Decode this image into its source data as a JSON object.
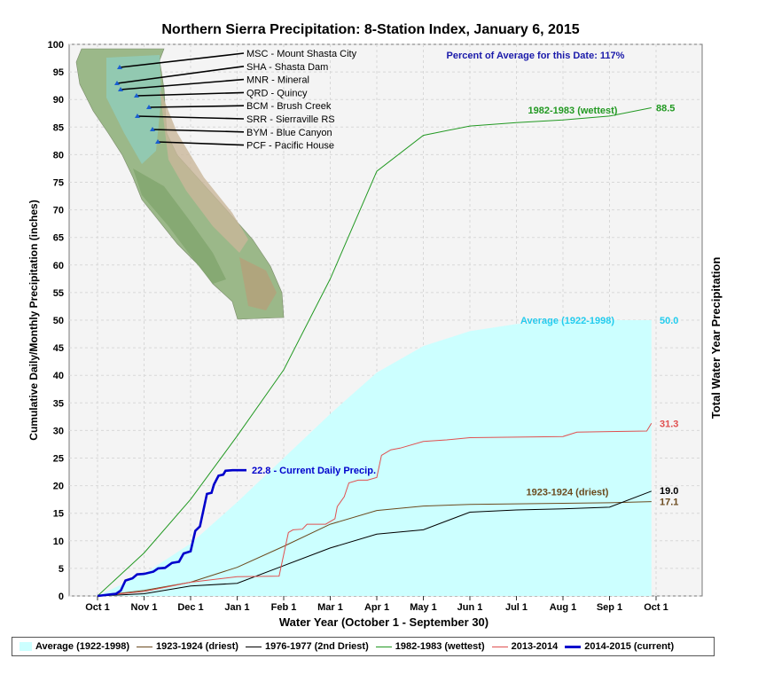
{
  "chart_data": {
    "type": "line",
    "title": "Northern Sierra Precipitation: 8-Station Index, January 6, 2015",
    "xlabel": "Water Year (October 1 - September 30)",
    "ylabel": "Cumulative Daily/Monthly Precipitation (inches)",
    "y2label": "Total Water Year Precipitation",
    "ylim": [
      0,
      100
    ],
    "yticks": [
      0,
      5,
      10,
      15,
      20,
      25,
      30,
      35,
      40,
      45,
      50,
      55,
      60,
      65,
      70,
      75,
      80,
      85,
      90,
      95,
      100
    ],
    "xticks": [
      "Oct 1",
      "Nov 1",
      "Dec 1",
      "Jan 1",
      "Feb 1",
      "Mar 1",
      "Apr 1",
      "May 1",
      "Jun 1",
      "Jul 1",
      "Aug 1",
      "Sep 1",
      "Oct 1"
    ],
    "grid": true,
    "annotation_percent": "Percent of Average for this Date: 117%",
    "series": [
      {
        "name": "Average (1922-1998)",
        "kind": "area",
        "color": "#ccffff",
        "months": [
          0,
          1,
          2,
          3,
          4,
          5,
          6,
          7,
          8,
          9,
          10,
          11,
          11.9
        ],
        "values": [
          0,
          4.0,
          9.5,
          17.0,
          25.0,
          33.0,
          40.5,
          45.3,
          48.0,
          49.3,
          49.8,
          50.0,
          50.0
        ],
        "end_label": "50.0",
        "label": "Average (1922-1998)"
      },
      {
        "name": "1923-1924 (driest)",
        "kind": "line",
        "color": "#6b4a1e",
        "months": [
          0,
          1,
          2,
          3,
          4,
          5,
          6,
          7,
          8,
          9,
          10,
          11,
          11.9
        ],
        "values": [
          0,
          1.0,
          2.5,
          5.2,
          9.0,
          13.0,
          15.5,
          16.3,
          16.6,
          16.7,
          16.8,
          16.9,
          17.1
        ],
        "end_label": "17.1",
        "label": "1923-1924 (driest)"
      },
      {
        "name": "1976-1977 (2nd Driest)",
        "kind": "line",
        "color": "#000000",
        "months": [
          0,
          1,
          2,
          3,
          4,
          5,
          6,
          7,
          8,
          9,
          10,
          11,
          11.9
        ],
        "values": [
          0,
          0.4,
          1.8,
          2.3,
          5.5,
          8.7,
          11.2,
          12.0,
          15.2,
          15.6,
          15.8,
          16.1,
          19.0
        ],
        "end_label": "19.0"
      },
      {
        "name": "1982-1983 (wettest)",
        "kind": "line",
        "color": "#229922",
        "months": [
          0,
          1,
          2,
          3,
          4,
          5,
          6,
          7,
          8,
          9,
          10,
          11,
          11.9
        ],
        "values": [
          0,
          7.8,
          17.5,
          29.0,
          41.0,
          57.5,
          77.0,
          83.5,
          85.2,
          85.8,
          86.3,
          87.0,
          88.5
        ],
        "end_label": "88.5",
        "label": "1982-1983 (wettest)"
      },
      {
        "name": "2013-2014",
        "kind": "line",
        "color": "#e05050",
        "months": [
          0,
          1,
          2,
          3,
          3.9,
          4.1,
          4.2,
          4.4,
          4.5,
          4.9,
          5.1,
          5.15,
          5.3,
          5.4,
          5.6,
          5.8,
          6.0,
          6.1,
          6.3,
          6.5,
          7.0,
          7.5,
          8.0,
          9.0,
          10.0,
          10.3,
          11.0,
          11.8,
          11.9
        ],
        "values": [
          0,
          0.8,
          2.5,
          3.5,
          3.6,
          11.5,
          12.0,
          12.1,
          13.0,
          13.0,
          14.0,
          16.2,
          18.0,
          20.5,
          21.0,
          21.0,
          21.5,
          25.5,
          26.5,
          26.8,
          28.0,
          28.3,
          28.7,
          28.8,
          28.9,
          29.7,
          29.8,
          29.9,
          31.3
        ],
        "end_label": "31.3"
      },
      {
        "name": "2014-2015 (current)",
        "kind": "line",
        "color": "#0000cc",
        "months": [
          0,
          0.4,
          0.5,
          0.6,
          0.75,
          0.85,
          1.0,
          1.2,
          1.3,
          1.45,
          1.6,
          1.75,
          1.85,
          2.0,
          2.1,
          2.2,
          2.35,
          2.45,
          2.5,
          2.55,
          2.6,
          2.7,
          2.75,
          2.9,
          3.1,
          3.2
        ],
        "values": [
          0,
          0.4,
          1.0,
          2.8,
          3.2,
          3.9,
          4.0,
          4.4,
          5.0,
          5.1,
          6.0,
          6.2,
          7.7,
          8.1,
          11.8,
          12.6,
          18.5,
          18.7,
          20.2,
          21.0,
          21.8,
          22.0,
          22.7,
          22.8,
          22.8,
          22.8
        ],
        "end_label": "22.8 -  Current Daily Precip."
      }
    ],
    "legend": [
      {
        "label": "Average (1922-1998)",
        "color": "#ccffff",
        "kind": "area"
      },
      {
        "label": "1923-1924 (driest)",
        "color": "#6b4a1e",
        "kind": "line"
      },
      {
        "label": "1976-1977 (2nd Driest)",
        "color": "#000000",
        "kind": "line"
      },
      {
        "label": "1982-1983 (wettest)",
        "color": "#229922",
        "kind": "line"
      },
      {
        "label": "2013-2014",
        "color": "#e05050",
        "kind": "line"
      },
      {
        "label": "2014-2015 (current)",
        "color": "#0000cc",
        "kind": "line-thick"
      }
    ],
    "stations": [
      "MSC - Mount Shasta City",
      "SHA - Shasta Dam",
      "MNR - Mineral",
      "QRD - Quincy",
      "BCM - Brush Creek",
      "SRR - Sierraville RS",
      "BYM - Blue Canyon",
      "PCF - Pacific House"
    ]
  }
}
